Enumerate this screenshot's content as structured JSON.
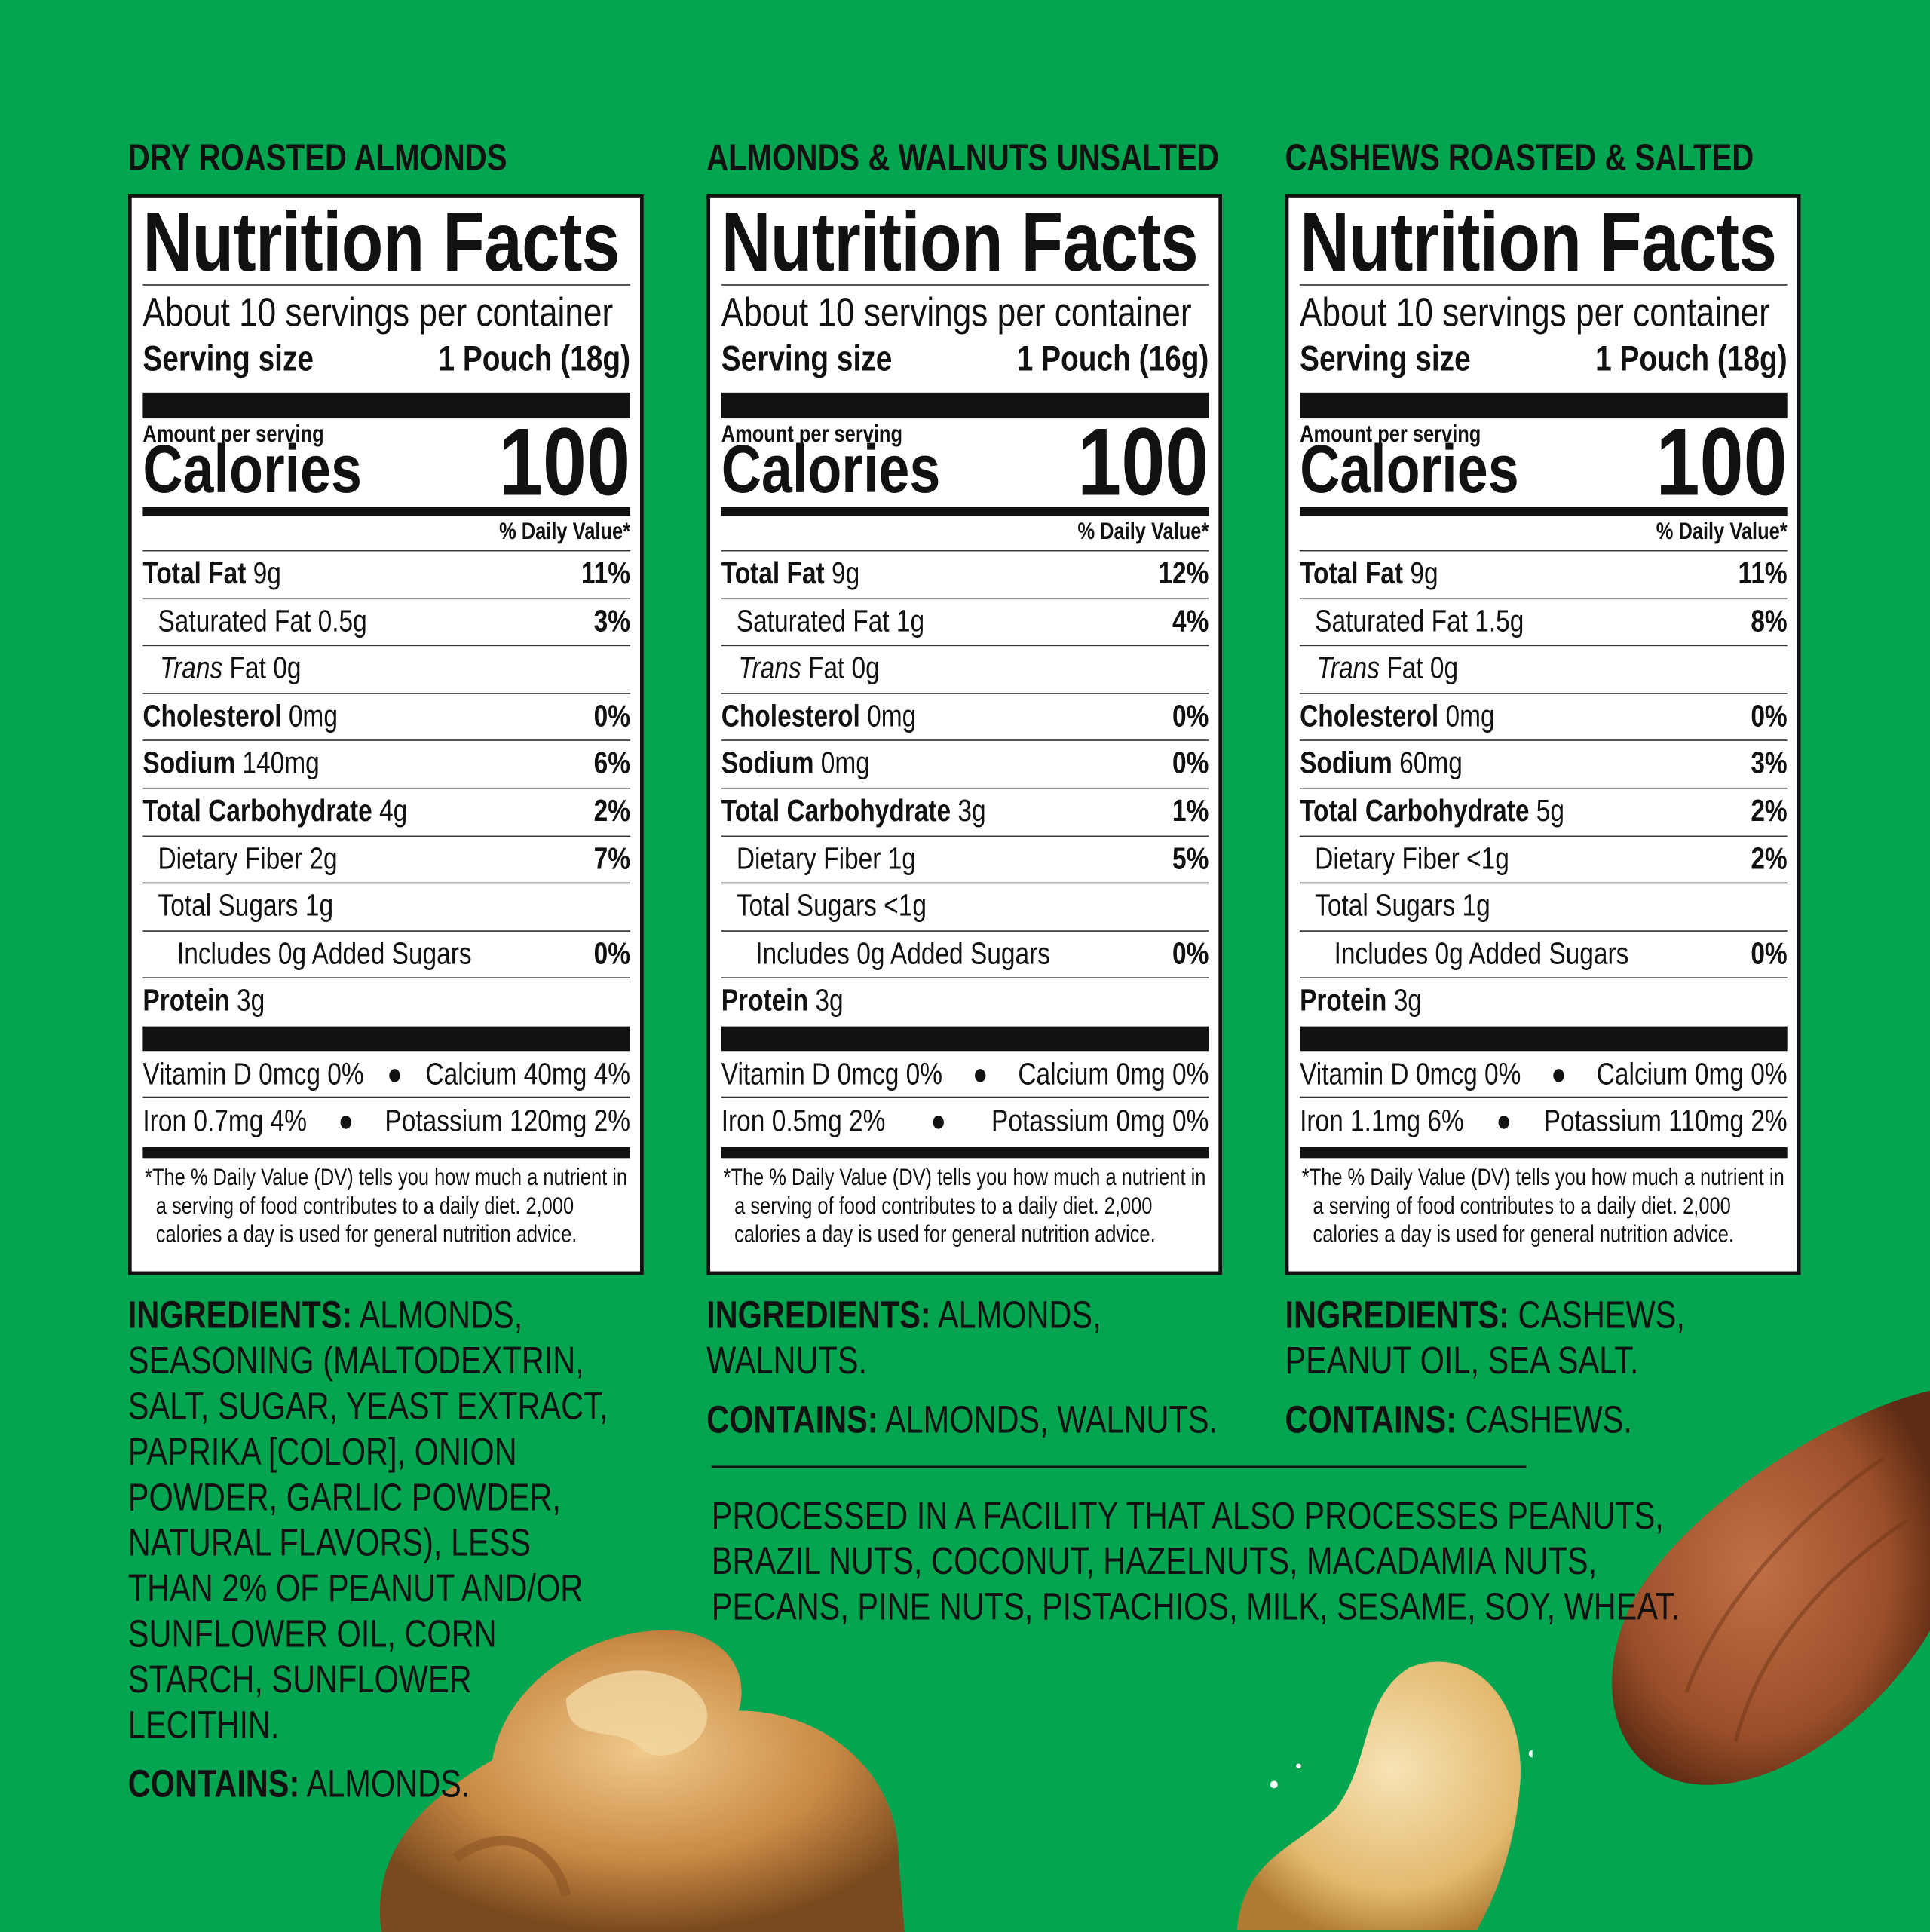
{
  "colors": {
    "background": "#03a550",
    "label_bg": "#ffffff",
    "ink": "#111111"
  },
  "panels": [
    {
      "product": "DRY ROASTED ALMONDS",
      "heading": "Nutrition Facts",
      "servings": "About 10 servings per container",
      "serving_size_label": "Serving size",
      "serving_size": "1 Pouch (18g)",
      "amount_per_serving": "Amount per serving",
      "calories_label": "Calories",
      "calories": "100",
      "dv_header": "% Daily Value*",
      "rows": [
        {
          "name": "Total Fat",
          "amount": "9g",
          "dv": "11%",
          "bold": true,
          "indent": 0
        },
        {
          "name": "Saturated Fat",
          "amount": "0.5g",
          "dv": "3%",
          "bold": false,
          "indent": 1
        },
        {
          "name": "Trans Fat",
          "amount": "0g",
          "dv": "",
          "bold": false,
          "indent": 1,
          "italic_first": true
        },
        {
          "name": "Cholesterol",
          "amount": "0mg",
          "dv": "0%",
          "bold": true,
          "indent": 0
        },
        {
          "name": "Sodium",
          "amount": "140mg",
          "dv": "6%",
          "bold": true,
          "indent": 0
        },
        {
          "name": "Total Carbohydrate",
          "amount": "4g",
          "dv": "2%",
          "bold": true,
          "indent": 0
        },
        {
          "name": "Dietary Fiber",
          "amount": "2g",
          "dv": "7%",
          "bold": false,
          "indent": 1
        },
        {
          "name": "Total Sugars",
          "amount": "1g",
          "dv": "",
          "bold": false,
          "indent": 1
        },
        {
          "name": "Includes 0g Added Sugars",
          "amount": "",
          "dv": "0%",
          "bold": false,
          "indent": 2
        },
        {
          "name": "Protein",
          "amount": "3g",
          "dv": "",
          "bold": true,
          "indent": 0
        }
      ],
      "vitamins": [
        [
          "Vitamin D 0mcg 0%",
          "Calcium 40mg 4%"
        ],
        [
          "Iron 0.7mg 4%",
          "Potassium 120mg 2%"
        ]
      ],
      "footnote": "*The % Daily Value (DV) tells you how much a nutrient in a serving of food contributes to a daily diet. 2,000 calories a day is used for general nutrition advice.",
      "ingredients_label": "INGREDIENTS:",
      "ingredients": "ALMONDS, SEASONING (MALTODEXTRIN, SALT, SUGAR, YEAST EXTRACT, PAPRIKA [COLOR], ONION POWDER, GARLIC POWDER, NATURAL FLAVORS), LESS THAN 2% OF PEANUT AND/OR SUNFLOWER OIL, CORN STARCH, SUNFLOWER LECITHIN.",
      "contains_label": "CONTAINS:",
      "contains": "ALMONDS."
    },
    {
      "product": "ALMONDS & WALNUTS UNSALTED",
      "heading": "Nutrition Facts",
      "servings": "About 10 servings per container",
      "serving_size_label": "Serving size",
      "serving_size": "1 Pouch (16g)",
      "amount_per_serving": "Amount per serving",
      "calories_label": "Calories",
      "calories": "100",
      "dv_header": "% Daily Value*",
      "rows": [
        {
          "name": "Total Fat",
          "amount": "9g",
          "dv": "12%",
          "bold": true,
          "indent": 0
        },
        {
          "name": "Saturated Fat",
          "amount": "1g",
          "dv": "4%",
          "bold": false,
          "indent": 1
        },
        {
          "name": "Trans Fat",
          "amount": "0g",
          "dv": "",
          "bold": false,
          "indent": 1,
          "italic_first": true
        },
        {
          "name": "Cholesterol",
          "amount": "0mg",
          "dv": "0%",
          "bold": true,
          "indent": 0
        },
        {
          "name": "Sodium",
          "amount": "0mg",
          "dv": "0%",
          "bold": true,
          "indent": 0
        },
        {
          "name": "Total Carbohydrate",
          "amount": "3g",
          "dv": "1%",
          "bold": true,
          "indent": 0
        },
        {
          "name": "Dietary Fiber",
          "amount": "1g",
          "dv": "5%",
          "bold": false,
          "indent": 1
        },
        {
          "name": "Total Sugars",
          "amount": "<1g",
          "dv": "",
          "bold": false,
          "indent": 1
        },
        {
          "name": "Includes 0g Added Sugars",
          "amount": "",
          "dv": "0%",
          "bold": false,
          "indent": 2
        },
        {
          "name": "Protein",
          "amount": "3g",
          "dv": "",
          "bold": true,
          "indent": 0
        }
      ],
      "vitamins": [
        [
          "Vitamin D 0mcg 0%",
          "Calcium 0mg 0%"
        ],
        [
          "Iron 0.5mg 2%",
          "Potassium 0mg 0%"
        ]
      ],
      "footnote": "*The % Daily Value (DV) tells you how much a nutrient in a serving of food contributes to a daily diet. 2,000 calories a day is used for general nutrition advice.",
      "ingredients_label": "INGREDIENTS:",
      "ingredients": "ALMONDS, WALNUTS.",
      "contains_label": "CONTAINS:",
      "contains": "ALMONDS, WALNUTS."
    },
    {
      "product": "CASHEWS ROASTED & SALTED",
      "heading": "Nutrition Facts",
      "servings": "About 10 servings per container",
      "serving_size_label": "Serving size",
      "serving_size": "1 Pouch (18g)",
      "amount_per_serving": "Amount per serving",
      "calories_label": "Calories",
      "calories": "100",
      "dv_header": "% Daily Value*",
      "rows": [
        {
          "name": "Total Fat",
          "amount": "9g",
          "dv": "11%",
          "bold": true,
          "indent": 0
        },
        {
          "name": "Saturated Fat",
          "amount": "1.5g",
          "dv": "8%",
          "bold": false,
          "indent": 1
        },
        {
          "name": "Trans Fat",
          "amount": "0g",
          "dv": "",
          "bold": false,
          "indent": 1,
          "italic_first": true
        },
        {
          "name": "Cholesterol",
          "amount": "0mg",
          "dv": "0%",
          "bold": true,
          "indent": 0
        },
        {
          "name": "Sodium",
          "amount": "60mg",
          "dv": "3%",
          "bold": true,
          "indent": 0
        },
        {
          "name": "Total Carbohydrate",
          "amount": "5g",
          "dv": "2%",
          "bold": true,
          "indent": 0
        },
        {
          "name": "Dietary Fiber",
          "amount": "<1g",
          "dv": "2%",
          "bold": false,
          "indent": 1
        },
        {
          "name": "Total Sugars",
          "amount": "1g",
          "dv": "",
          "bold": false,
          "indent": 1
        },
        {
          "name": "Includes 0g Added Sugars",
          "amount": "",
          "dv": "0%",
          "bold": false,
          "indent": 2
        },
        {
          "name": "Protein",
          "amount": "3g",
          "dv": "",
          "bold": true,
          "indent": 0
        }
      ],
      "vitamins": [
        [
          "Vitamin D 0mcg 0%",
          "Calcium 0mg 0%"
        ],
        [
          "Iron 1.1mg 6%",
          "Potassium 110mg 2%"
        ]
      ],
      "footnote": "*The % Daily Value (DV) tells you how much a nutrient in a serving of food contributes to a daily diet. 2,000 calories a day is used for general nutrition advice.",
      "ingredients_label": "INGREDIENTS:",
      "ingredients": "CASHEWS, PEANUT OIL, SEA SALT.",
      "contains_label": "CONTAINS:",
      "contains": "CASHEWS."
    }
  ],
  "facility_statement": "PROCESSED IN A FACILITY THAT ALSO PROCESSES PEANUTS, BRAZIL NUTS, COCONUT, HAZELNUTS, MACADAMIA NUTS, PECANS, PINE NUTS, PISTACHIOS, MILK, SESAME, SOY, WHEAT.",
  "images": [
    "walnut",
    "cashew",
    "almond"
  ]
}
